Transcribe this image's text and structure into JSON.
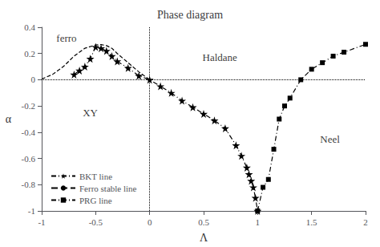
{
  "chart_data": {
    "type": "line",
    "title": "Phase diagram",
    "xlabel": "Λ",
    "ylabel": "α",
    "xlim": [
      -1,
      2
    ],
    "ylim": [
      -1,
      0.4
    ],
    "xticks": [
      -1,
      -0.5,
      0,
      0.5,
      1,
      1.5,
      2
    ],
    "yticks": [
      -1,
      -0.8,
      -0.6,
      -0.4,
      -0.2,
      0,
      0.2,
      0.4
    ],
    "grid": false,
    "legend": "lower left",
    "series": [
      {
        "name": "BKT line",
        "color": "black",
        "marker": "star",
        "line_style": "dashdot",
        "x": [
          -0.7,
          -0.65,
          -0.6,
          -0.55,
          -0.5,
          -0.45,
          -0.4,
          -0.35,
          -0.3,
          -0.2,
          -0.1,
          0.0,
          0.1,
          0.2,
          0.3,
          0.4,
          0.5,
          0.6,
          0.7,
          0.8,
          0.85,
          0.9,
          0.92,
          0.94,
          0.96,
          0.98,
          1.0
        ],
        "values": [
          0.04,
          0.07,
          0.1,
          0.16,
          0.25,
          0.24,
          0.22,
          0.18,
          0.14,
          0.09,
          0.03,
          0.0,
          -0.05,
          -0.1,
          -0.16,
          -0.21,
          -0.26,
          -0.31,
          -0.37,
          -0.5,
          -0.58,
          -0.67,
          -0.72,
          -0.77,
          -0.82,
          -0.9,
          -1.0
        ]
      },
      {
        "name": "Ferro stable line",
        "color": "black",
        "marker": "none",
        "line_style": "dashed",
        "x": [
          -1.0,
          -0.9,
          -0.8,
          -0.7,
          -0.6,
          -0.5,
          -0.45,
          -0.4,
          -0.35,
          -0.3,
          -0.2,
          -0.1,
          0.0
        ],
        "values": [
          0.005,
          0.04,
          0.1,
          0.18,
          0.24,
          0.265,
          0.268,
          0.26,
          0.24,
          0.2,
          0.13,
          0.06,
          0.0
        ]
      },
      {
        "name": "PRG line",
        "color": "black",
        "marker": "square",
        "line_style": "dashdot",
        "x": [
          1.0,
          1.05,
          1.1,
          1.15,
          1.2,
          1.25,
          1.3,
          1.4,
          1.5,
          1.6,
          1.7,
          1.8,
          2.0
        ],
        "values": [
          -1.0,
          -0.82,
          -0.76,
          -0.53,
          -0.3,
          -0.2,
          -0.14,
          0.0,
          0.08,
          0.13,
          0.18,
          0.21,
          0.27
        ]
      }
    ],
    "vlines": [
      0
    ],
    "hlines": [
      0
    ],
    "annotations": [
      {
        "text": "XY",
        "x": -0.55,
        "y": -0.25
      },
      {
        "text": "Haldane",
        "x": 0.65,
        "y": 0.17
      },
      {
        "text": "Neel",
        "x": 1.67,
        "y": -0.45
      },
      {
        "text": "ferro",
        "x": -0.77,
        "y": 0.315
      }
    ]
  }
}
